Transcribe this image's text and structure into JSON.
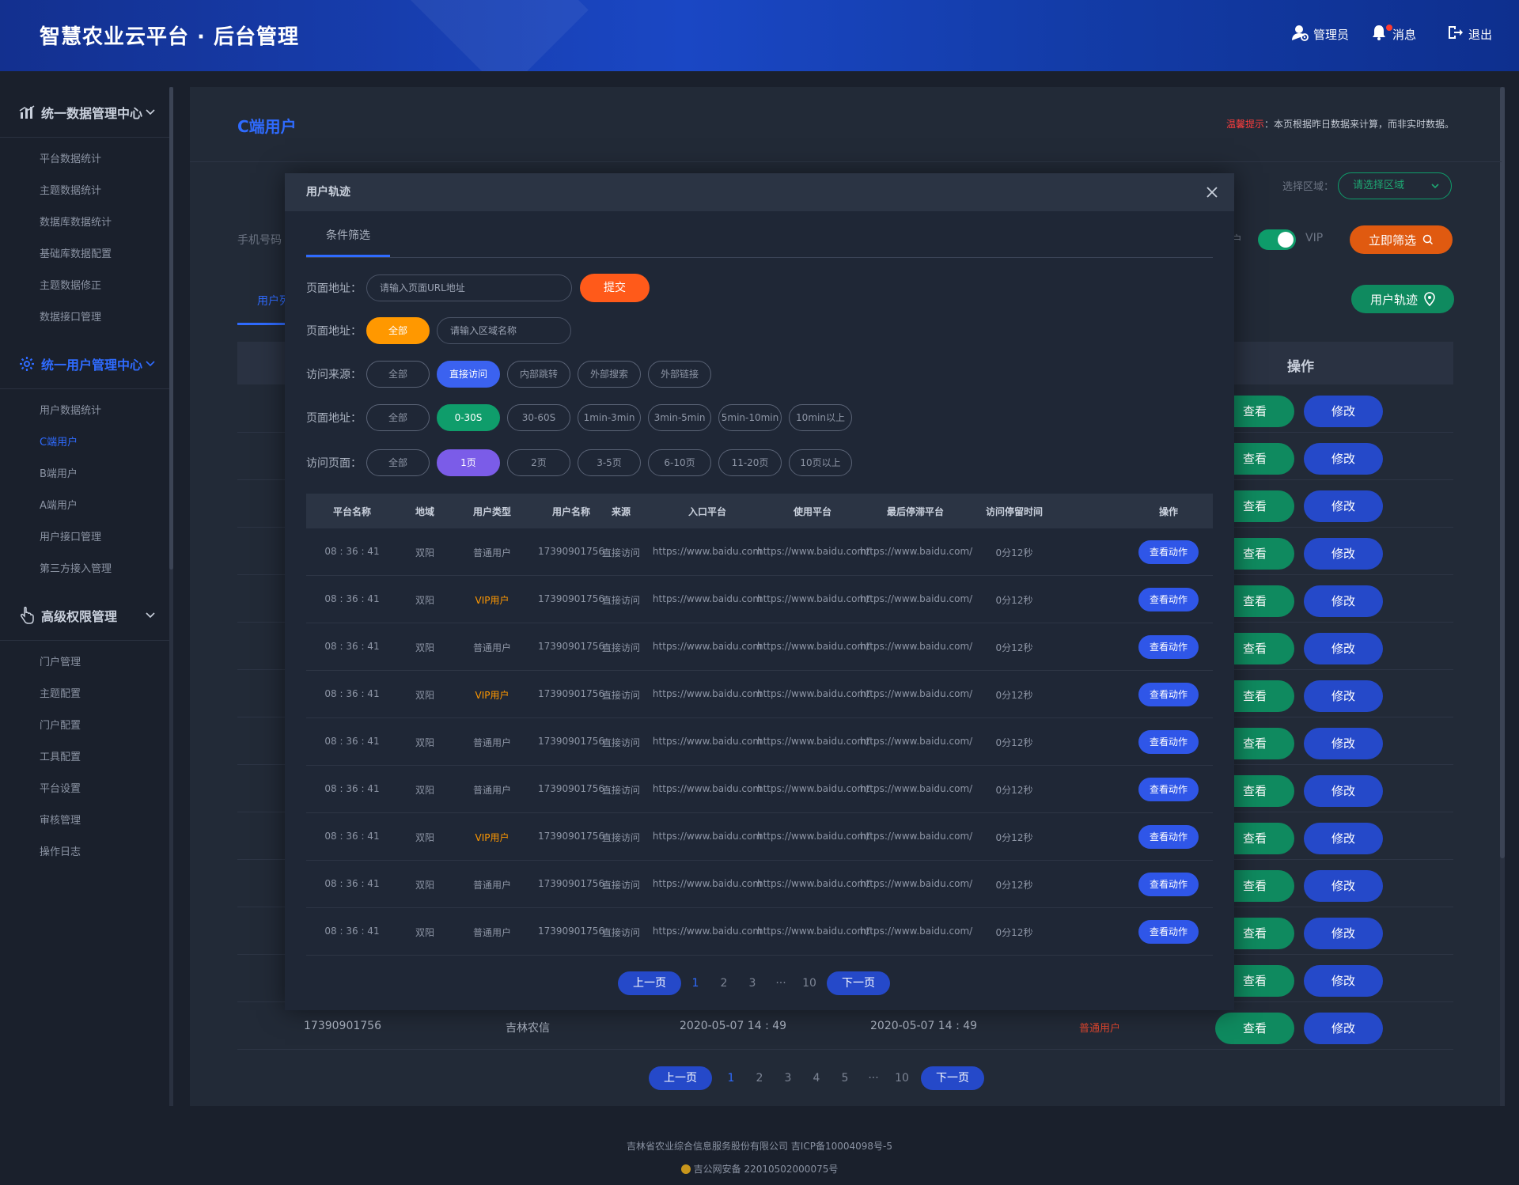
{
  "header": {
    "title": "智慧农业云平台 · 后台管理",
    "admin": "管理员",
    "messages": "消息",
    "logout": "退出"
  },
  "sidebar": {
    "sections": [
      {
        "label": "统一数据管理中心",
        "items": [
          "平台数据统计",
          "主题数据统计",
          "数据库数据统计",
          "基础库数据配置",
          "主题数据修正",
          "数据接口管理"
        ]
      },
      {
        "label": "统一用户管理中心",
        "items": [
          "用户数据统计",
          "C端用户",
          "B端用户",
          "A端用户",
          "用户接口管理",
          "第三方接入管理"
        ]
      },
      {
        "label": "高级权限管理",
        "items": [
          "门户管理",
          "主题配置",
          "门户配置",
          "工具配置",
          "平台设置",
          "审核管理",
          "操作日志"
        ]
      }
    ]
  },
  "page": {
    "title": "C端用户",
    "tip_label": "温馨提示",
    "tip_text": "：本页根据昨日数据来计算，而非实时数据。",
    "region_label": "选择区域：",
    "region_placeholder": "请选择区域",
    "phone_label": "手机号码",
    "user_label": "户",
    "vip_label": "VIP",
    "filter_button": "立即筛选",
    "tab_user": "用户列",
    "track_button": "用户轨迹",
    "operation_header": "操作",
    "view_label": "查看",
    "edit_label": "修改",
    "last_row": {
      "phone": "17390901756",
      "org": "吉林农信",
      "t1": "2020-05-07  14 : 49",
      "t2": "2020-05-07  14 : 49",
      "type": "普通用户"
    },
    "pagination": {
      "prev": "上一页",
      "next": "下一页",
      "pages": [
        "1",
        "2",
        "3",
        "4",
        "5",
        "···",
        "10"
      ]
    }
  },
  "modal": {
    "title": "用户轨迹",
    "tab": "条件筛选",
    "row1": {
      "label": "页面地址：",
      "placeholder": "请输入页面URL地址",
      "submit": "提交"
    },
    "row2": {
      "label": "页面地址：",
      "chip": "全部",
      "placeholder": "请输入区域名称"
    },
    "row3": {
      "label": "访问来源：",
      "chips": [
        "全部",
        "直接访问",
        "内部跳转",
        "外部搜索",
        "外部链接"
      ]
    },
    "row4": {
      "label": "页面地址：",
      "chips": [
        "全部",
        "0-30S",
        "30-60S",
        "1min-3min",
        "3min-5min",
        "5min-10min",
        "10min以上"
      ]
    },
    "row5": {
      "label": "访问页面：",
      "chips": [
        "全部",
        "1页",
        "2页",
        "3-5页",
        "6-10页",
        "11-20页",
        "10页以上"
      ]
    },
    "table": {
      "headers": [
        "平台名称",
        "地域",
        "用户类型",
        "用户名称",
        "来源",
        "入口平台",
        "使用平台",
        "最后停滞平台",
        "访问停留时间",
        "操作"
      ],
      "rows": [
        {
          "time": "08 : 36 : 41",
          "region": "双阳",
          "type": "普通用户",
          "name": "17390901756",
          "src": "直接访问",
          "entry": "https://www.baidu.com",
          "use": "https://www.baidu.com/",
          "last": "https://www.baidu.com/",
          "stay": "0分12秒",
          "vip": false
        },
        {
          "time": "08 : 36 : 41",
          "region": "双阳",
          "type": "VIP用户",
          "name": "17390901756",
          "src": "直接访问",
          "entry": "https://www.baidu.com",
          "use": "https://www.baidu.com/",
          "last": "https://www.baidu.com/",
          "stay": "0分12秒",
          "vip": true
        },
        {
          "time": "08 : 36 : 41",
          "region": "双阳",
          "type": "普通用户",
          "name": "17390901756",
          "src": "直接访问",
          "entry": "https://www.baidu.com",
          "use": "https://www.baidu.com/",
          "last": "https://www.baidu.com/",
          "stay": "0分12秒",
          "vip": false
        },
        {
          "time": "08 : 36 : 41",
          "region": "双阳",
          "type": "VIP用户",
          "name": "17390901756",
          "src": "直接访问",
          "entry": "https://www.baidu.com",
          "use": "https://www.baidu.com/",
          "last": "https://www.baidu.com/",
          "stay": "0分12秒",
          "vip": true
        },
        {
          "time": "08 : 36 : 41",
          "region": "双阳",
          "type": "普通用户",
          "name": "17390901756",
          "src": "直接访问",
          "entry": "https://www.baidu.com",
          "use": "https://www.baidu.com/",
          "last": "https://www.baidu.com/",
          "stay": "0分12秒",
          "vip": false
        },
        {
          "time": "08 : 36 : 41",
          "region": "双阳",
          "type": "普通用户",
          "name": "17390901756",
          "src": "直接访问",
          "entry": "https://www.baidu.com",
          "use": "https://www.baidu.com/",
          "last": "https://www.baidu.com/",
          "stay": "0分12秒",
          "vip": false
        },
        {
          "time": "08 : 36 : 41",
          "region": "双阳",
          "type": "VIP用户",
          "name": "17390901756",
          "src": "直接访问",
          "entry": "https://www.baidu.com",
          "use": "https://www.baidu.com/",
          "last": "https://www.baidu.com/",
          "stay": "0分12秒",
          "vip": true
        },
        {
          "time": "08 : 36 : 41",
          "region": "双阳",
          "type": "普通用户",
          "name": "17390901756",
          "src": "直接访问",
          "entry": "https://www.baidu.com",
          "use": "https://www.baidu.com/",
          "last": "https://www.baidu.com/",
          "stay": "0分12秒",
          "vip": false
        },
        {
          "time": "08 : 36 : 41",
          "region": "双阳",
          "type": "普通用户",
          "name": "17390901756",
          "src": "直接访问",
          "entry": "https://www.baidu.com",
          "use": "https://www.baidu.com/",
          "last": "https://www.baidu.com/",
          "stay": "0分12秒",
          "vip": false
        }
      ],
      "action_label": "查看动作"
    },
    "pagination": {
      "prev": "上一页",
      "next": "下一页",
      "pages": [
        "1",
        "2",
        "3",
        "···",
        "10"
      ]
    }
  },
  "footer": {
    "line1": "吉林省农业综合信息服务股份有限公司     吉ICP备10004098号-5",
    "line2": "吉公网安备 22010502000075号"
  },
  "colors": {
    "accent": "#2f6bff",
    "green": "#0f9d6b",
    "orange": "#ff9800",
    "red": "#ff3d3d",
    "header": "#1a47c4"
  }
}
